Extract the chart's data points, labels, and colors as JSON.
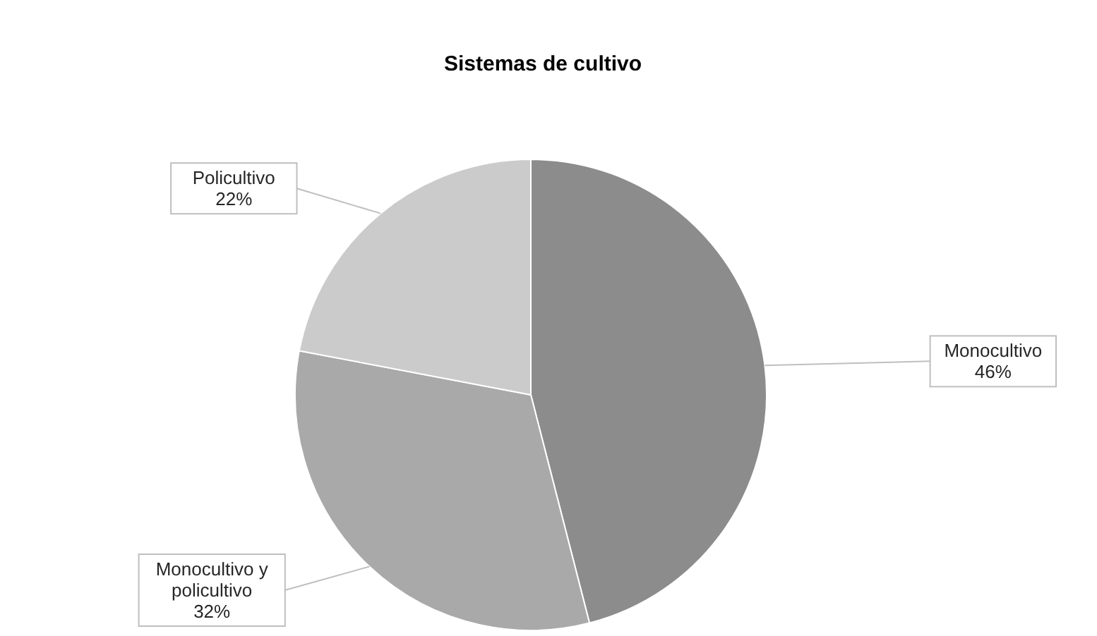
{
  "chart_data": {
    "type": "pie",
    "title": "Sistemas de cultivo",
    "categories": [
      "Monocultivo",
      "Monocultivo y policultivo",
      "Policultivo"
    ],
    "values": [
      46,
      32,
      22
    ],
    "colors": [
      "#8c8c8c",
      "#a9a9a9",
      "#cbcbcb"
    ],
    "value_labels": [
      "46%",
      "32%",
      "22%"
    ],
    "legend": false
  }
}
